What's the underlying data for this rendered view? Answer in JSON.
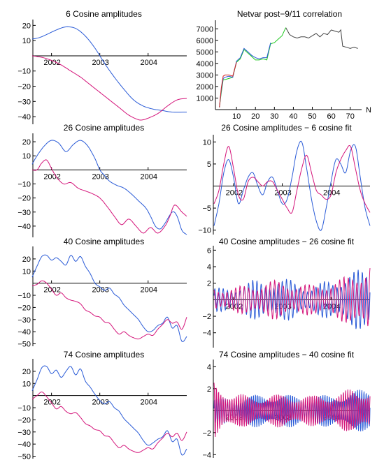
{
  "colors": {
    "blue": "#2a5bd7",
    "magenta": "#d4147a",
    "black": "#000000",
    "red": "#d62020",
    "green": "#1ec81e",
    "gray": "#444444"
  },
  "chart_data": [
    {
      "id": "p1",
      "type": "line",
      "title": "6 Cosine amplitudes",
      "xlim": [
        2001.6,
        2004.8
      ],
      "ylim": [
        -45,
        22
      ],
      "yticks": [
        20,
        10,
        -10,
        -20,
        -30,
        -40
      ],
      "xticks": [
        2002,
        2003,
        2004
      ],
      "series": [
        {
          "color": "blue",
          "x": [
            2001.6,
            2001.75,
            2001.9,
            2002.1,
            2002.3,
            2002.5,
            2002.7,
            2002.9,
            2003.1,
            2003.3,
            2003.5,
            2003.7,
            2003.9,
            2004.1,
            2004.3,
            2004.5,
            2004.8
          ],
          "y": [
            11,
            12,
            14,
            17,
            19,
            18,
            13,
            5,
            -5,
            -14,
            -22,
            -29,
            -33,
            -35,
            -36,
            -37,
            -37
          ]
        },
        {
          "color": "magenta",
          "x": [
            2001.6,
            2001.8,
            2002.0,
            2002.2,
            2002.4,
            2002.6,
            2002.8,
            2003.0,
            2003.2,
            2003.4,
            2003.6,
            2003.8,
            2003.9,
            2004.0,
            2004.2,
            2004.4,
            2004.6,
            2004.8
          ],
          "y": [
            0,
            -1,
            -3,
            -6,
            -10,
            -14,
            -19,
            -24,
            -29,
            -34,
            -39,
            -42,
            -42,
            -41,
            -38,
            -33,
            -29,
            -28
          ]
        }
      ]
    },
    {
      "id": "p2",
      "type": "line",
      "title": "Netvar  post−9/11 correlation",
      "xlim": [
        0,
        76
      ],
      "ylim": [
        0,
        7500
      ],
      "yticks": [
        1000,
        2000,
        3000,
        4000,
        5000,
        6000,
        7000
      ],
      "xticks": [
        10,
        20,
        30,
        40,
        50,
        60,
        70
      ],
      "xlabel": "N",
      "series": [
        {
          "color": "gray",
          "x": [
            36,
            38,
            40,
            42,
            44,
            46,
            48,
            50,
            52,
            54,
            56,
            58,
            60,
            62,
            64,
            65,
            66,
            68,
            70,
            72,
            74
          ],
          "y": [
            7100,
            6500,
            6300,
            6200,
            6300,
            6300,
            6200,
            6400,
            6600,
            6300,
            6600,
            6500,
            6900,
            6800,
            6700,
            6900,
            5500,
            5400,
            5300,
            5400,
            5300
          ]
        },
        {
          "color": "green",
          "x": [
            1,
            2,
            3,
            4,
            6,
            8,
            10,
            12,
            14,
            16,
            18,
            20,
            22,
            24,
            26,
            28,
            30,
            32,
            34,
            36
          ],
          "y": [
            200,
            1500,
            2600,
            2600,
            2700,
            2800,
            4100,
            4400,
            5200,
            4900,
            4600,
            4300,
            4300,
            4400,
            4300,
            5700,
            5800,
            6100,
            6400,
            7100
          ]
        },
        {
          "color": "blue",
          "x": [
            1,
            2,
            3,
            4,
            6,
            8,
            10,
            12,
            14,
            16,
            18,
            20,
            22,
            24,
            26,
            28
          ],
          "y": [
            200,
            1700,
            2700,
            2800,
            2900,
            2800,
            4200,
            4500,
            5300,
            5000,
            4700,
            4500,
            4400,
            4500,
            4500,
            5800
          ]
        },
        {
          "color": "red",
          "x": [
            1,
            2,
            3,
            4,
            6,
            8,
            10
          ],
          "y": [
            200,
            1900,
            2900,
            3000,
            3000,
            2900,
            4100
          ]
        }
      ]
    },
    {
      "id": "p3",
      "type": "line",
      "title": "26 Cosine amplitudes",
      "xlim": [
        2001.6,
        2004.8
      ],
      "ylim": [
        -48,
        24
      ],
      "yticks": [
        20,
        10,
        -10,
        -20,
        -30,
        -40
      ],
      "xticks": [
        2002,
        2003,
        2004
      ],
      "series": [
        {
          "color": "blue",
          "x": [
            2001.6,
            2001.7,
            2001.85,
            2002.0,
            2002.15,
            2002.3,
            2002.45,
            2002.6,
            2002.75,
            2002.9,
            2003.0,
            2003.1,
            2003.2,
            2003.35,
            2003.5,
            2003.65,
            2003.8,
            2003.95,
            2004.05,
            2004.15,
            2004.25,
            2004.35,
            2004.5,
            2004.6,
            2004.7,
            2004.8
          ],
          "y": [
            4,
            10,
            17,
            21,
            19,
            13,
            18,
            21,
            17,
            8,
            0,
            -4,
            -8,
            -11,
            -13,
            -17,
            -22,
            -27,
            -33,
            -40,
            -42,
            -38,
            -30,
            -33,
            -43,
            -46
          ]
        },
        {
          "color": "magenta",
          "x": [
            2001.6,
            2001.7,
            2001.8,
            2001.9,
            2002.0,
            2002.1,
            2002.25,
            2002.4,
            2002.55,
            2002.7,
            2002.85,
            2003.0,
            2003.15,
            2003.3,
            2003.45,
            2003.6,
            2003.75,
            2003.9,
            2004.05,
            2004.2,
            2004.35,
            2004.45,
            2004.55,
            2004.7,
            2004.8
          ],
          "y": [
            0,
            0,
            5,
            7,
            1,
            -5,
            -10,
            -9,
            -13,
            -15,
            -17,
            -20,
            -26,
            -33,
            -39,
            -35,
            -40,
            -45,
            -41,
            -45,
            -40,
            -33,
            -25,
            -30,
            -33
          ]
        }
      ]
    },
    {
      "id": "p4",
      "type": "line",
      "title": "26 Cosine amplitudes  − 6 cosine fit",
      "xlim": [
        2001.6,
        2004.8
      ],
      "ylim": [
        -11,
        11
      ],
      "yticks": [
        10,
        5,
        -5,
        -10
      ],
      "xticks": [
        2002,
        2003,
        2004
      ],
      "series": [
        {
          "color": "blue",
          "x": [
            2001.6,
            2001.7,
            2001.8,
            2001.9,
            2002.0,
            2002.1,
            2002.2,
            2002.3,
            2002.4,
            2002.5,
            2002.6,
            2002.7,
            2002.8,
            2002.9,
            2003.0,
            2003.1,
            2003.2,
            2003.3,
            2003.4,
            2003.5,
            2003.6,
            2003.7,
            2003.8,
            2003.9,
            2004.0,
            2004.1,
            2004.2,
            2004.3,
            2004.4,
            2004.5,
            2004.6,
            2004.7,
            2004.8
          ],
          "y": [
            -9,
            -4,
            3,
            6,
            2,
            -4,
            -1,
            2,
            3,
            0,
            -2,
            1,
            2,
            -1,
            -4,
            -3,
            2,
            8,
            10,
            4,
            -3,
            -8,
            -10,
            -5,
            1,
            6,
            5,
            3,
            8,
            9,
            2,
            -5,
            -9
          ]
        },
        {
          "color": "magenta",
          "x": [
            2001.6,
            2001.7,
            2001.8,
            2001.9,
            2002.0,
            2002.1,
            2002.2,
            2002.3,
            2002.4,
            2002.5,
            2002.6,
            2002.7,
            2002.8,
            2002.9,
            2003.0,
            2003.1,
            2003.2,
            2003.3,
            2003.4,
            2003.5,
            2003.6,
            2003.7,
            2003.8,
            2003.9,
            2004.0,
            2004.1,
            2004.2,
            2004.3,
            2004.4,
            2004.5,
            2004.6,
            2004.7,
            2004.8
          ],
          "y": [
            -4,
            -1,
            5,
            9,
            4,
            -2,
            -3,
            1,
            2,
            1,
            0,
            1,
            1,
            -1,
            -3,
            -5,
            -6,
            -1,
            4,
            7,
            3,
            -1,
            -2,
            -3,
            -2,
            3,
            6,
            8,
            9,
            4,
            -1,
            -4,
            -6
          ]
        }
      ]
    },
    {
      "id": "p5",
      "type": "line",
      "title": "40 Cosine amplitudes",
      "xlim": [
        2001.6,
        2004.8
      ],
      "ylim": [
        -52,
        28
      ],
      "yticks": [
        20,
        10,
        -10,
        -20,
        -30,
        -40,
        -50
      ],
      "xticks": [
        2002,
        2003,
        2004
      ],
      "series": [
        {
          "color": "blue",
          "x": [
            2001.6,
            2001.7,
            2001.8,
            2001.9,
            2002.0,
            2002.1,
            2002.2,
            2002.3,
            2002.4,
            2002.5,
            2002.6,
            2002.7,
            2002.8,
            2002.9,
            2003.0,
            2003.1,
            2003.2,
            2003.3,
            2003.4,
            2003.5,
            2003.6,
            2003.7,
            2003.8,
            2003.9,
            2004.0,
            2004.1,
            2004.2,
            2004.3,
            2004.4,
            2004.5,
            2004.6,
            2004.7,
            2004.8
          ],
          "y": [
            5,
            14,
            22,
            23,
            19,
            21,
            18,
            15,
            23,
            18,
            22,
            14,
            8,
            0,
            -3,
            -6,
            -4,
            -9,
            -12,
            -18,
            -22,
            -26,
            -30,
            -36,
            -40,
            -39,
            -35,
            -33,
            -28,
            -37,
            -35,
            -48,
            -44
          ]
        },
        {
          "color": "magenta",
          "x": [
            2001.6,
            2001.7,
            2001.8,
            2001.9,
            2002.0,
            2002.1,
            2002.2,
            2002.3,
            2002.4,
            2002.5,
            2002.6,
            2002.7,
            2002.8,
            2002.9,
            2003.0,
            2003.1,
            2003.2,
            2003.3,
            2003.4,
            2003.5,
            2003.6,
            2003.7,
            2003.8,
            2003.9,
            2004.0,
            2004.1,
            2004.2,
            2004.3,
            2004.4,
            2004.5,
            2004.6,
            2004.7,
            2004.8
          ],
          "y": [
            -2,
            -1,
            2,
            0,
            -5,
            -10,
            -8,
            -12,
            -14,
            -15,
            -17,
            -22,
            -24,
            -27,
            -28,
            -32,
            -33,
            -38,
            -42,
            -40,
            -43,
            -45,
            -46,
            -44,
            -42,
            -43,
            -38,
            -34,
            -30,
            -33,
            -32,
            -38,
            -28
          ]
        }
      ]
    },
    {
      "id": "p6",
      "type": "line",
      "title": "40 Cosine amplitudes  − 26 cosine fit",
      "xlim": [
        2001.6,
        2004.8
      ],
      "ylim": [
        -5.8,
        6.2
      ],
      "yticks": [
        6,
        4,
        2,
        -2,
        -4
      ],
      "xticks": [
        2002,
        2003,
        2004
      ],
      "series": [
        {
          "color": "blue",
          "amp": [
            1.4,
            1.6,
            2.4,
            2.6,
            2.5,
            1.6,
            2.6,
            3.4,
            4.0
          ],
          "freq": 37,
          "phase": 0.4
        },
        {
          "color": "magenta",
          "amp": [
            1.6,
            1.5,
            2.0,
            2.4,
            2.2,
            1.8,
            2.3,
            3.0,
            5.0
          ],
          "freq": 36,
          "phase": 1.6
        }
      ]
    },
    {
      "id": "p7",
      "type": "line",
      "title": "74 Cosine amplitudes",
      "xlim": [
        2001.6,
        2004.8
      ],
      "ylim": [
        -52,
        28
      ],
      "yticks": [
        20,
        10,
        -10,
        -20,
        -30,
        -40,
        -50
      ],
      "xticks": [
        2002,
        2003,
        2004
      ],
      "series": [
        {
          "color": "blue",
          "x": [
            2001.6,
            2001.7,
            2001.8,
            2001.9,
            2002.0,
            2002.1,
            2002.2,
            2002.3,
            2002.4,
            2002.5,
            2002.6,
            2002.7,
            2002.8,
            2002.9,
            2003.0,
            2003.1,
            2003.2,
            2003.3,
            2003.4,
            2003.5,
            2003.6,
            2003.7,
            2003.8,
            2003.9,
            2004.0,
            2004.1,
            2004.2,
            2004.3,
            2004.4,
            2004.5,
            2004.6,
            2004.7,
            2004.8
          ],
          "y": [
            4,
            13,
            23,
            24,
            18,
            21,
            15,
            20,
            24,
            17,
            22,
            12,
            7,
            1,
            -4,
            -7,
            -5,
            -10,
            -13,
            -19,
            -23,
            -27,
            -31,
            -37,
            -41,
            -39,
            -36,
            -34,
            -29,
            -38,
            -36,
            -49,
            -44
          ]
        },
        {
          "color": "magenta",
          "x": [
            2001.6,
            2001.7,
            2001.8,
            2001.9,
            2002.0,
            2002.1,
            2002.2,
            2002.3,
            2002.4,
            2002.5,
            2002.6,
            2002.7,
            2002.8,
            2002.9,
            2003.0,
            2003.1,
            2003.2,
            2003.3,
            2003.4,
            2003.5,
            2003.6,
            2003.7,
            2003.8,
            2003.9,
            2004.0,
            2004.1,
            2004.2,
            2004.3,
            2004.4,
            2004.5,
            2004.6,
            2004.7,
            2004.8
          ],
          "y": [
            -3,
            0,
            3,
            -1,
            -6,
            -11,
            -9,
            -13,
            -15,
            -14,
            -18,
            -23,
            -25,
            -28,
            -29,
            -33,
            -34,
            -39,
            -43,
            -41,
            -44,
            -46,
            -47,
            -45,
            -43,
            -44,
            -39,
            -35,
            -31,
            -34,
            -31,
            -37,
            -30
          ]
        }
      ]
    },
    {
      "id": "p8",
      "type": "line",
      "title": "74 Cosine amplitudes  − 40 cosine fit",
      "xlim": [
        2001.6,
        2004.8
      ],
      "ylim": [
        -4.3,
        4.4
      ],
      "yticks": [
        4,
        2,
        -2,
        -4
      ],
      "xticks": [
        2002,
        2003,
        2004
      ],
      "series": [
        {
          "color": "blue",
          "amp": [
            1.2,
            1.3,
            1.5,
            1.6,
            1.5,
            1.4,
            1.5,
            1.8,
            2.1
          ],
          "freq": 72,
          "phase": 0.2
        },
        {
          "color": "magenta",
          "amp": [
            3.0,
            1.6,
            1.4,
            1.5,
            1.6,
            1.4,
            1.6,
            2.0,
            2.2
          ],
          "freq": 70,
          "phase": 1.3
        }
      ]
    }
  ]
}
